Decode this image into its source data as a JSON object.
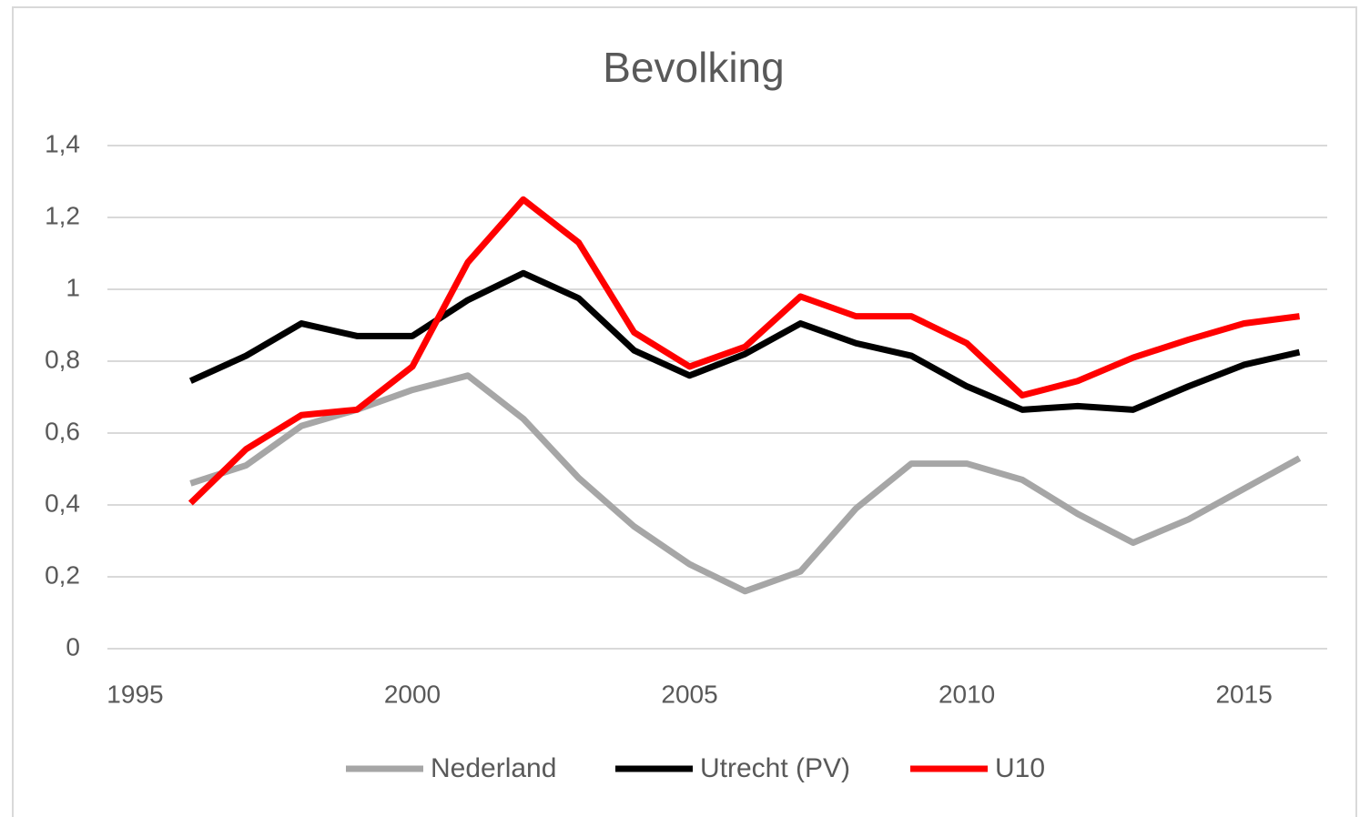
{
  "chart_data": {
    "type": "line",
    "title": "Bevolking",
    "x": [
      1996,
      1997,
      1998,
      1999,
      2000,
      2001,
      2002,
      2003,
      2004,
      2005,
      2006,
      2007,
      2008,
      2009,
      2010,
      2011,
      2012,
      2013,
      2014,
      2015,
      2016
    ],
    "series": [
      {
        "name": "Nederland",
        "color": "#a6a6a6",
        "values": [
          0.46,
          0.51,
          0.62,
          0.665,
          0.72,
          0.76,
          0.64,
          0.475,
          0.34,
          0.235,
          0.16,
          0.215,
          0.39,
          0.515,
          0.515,
          0.47,
          0.375,
          0.295,
          0.36,
          0.445,
          0.53
        ]
      },
      {
        "name": "Utrecht (PV)",
        "color": "#000000",
        "values": [
          0.745,
          0.815,
          0.905,
          0.87,
          0.87,
          0.97,
          1.045,
          0.975,
          0.83,
          0.76,
          0.82,
          0.905,
          0.85,
          0.815,
          0.73,
          0.665,
          0.675,
          0.665,
          0.73,
          0.79,
          0.825
        ]
      },
      {
        "name": "U10",
        "color": "#ff0000",
        "values": [
          0.405,
          0.555,
          0.65,
          0.665,
          0.785,
          1.075,
          1.25,
          1.13,
          0.88,
          0.785,
          0.84,
          0.98,
          0.925,
          0.925,
          0.85,
          0.705,
          0.745,
          0.81,
          0.86,
          0.905,
          0.925
        ]
      }
    ],
    "xlim": [
      1994.5,
      2016.5
    ],
    "xticks": [
      1995,
      2000,
      2005,
      2010,
      2015
    ],
    "ylim": [
      0,
      1.4
    ],
    "yticks": [
      0,
      {
        "value": 0.2,
        "label": "0,2"
      },
      {
        "value": 0.4,
        "label": "0,4"
      },
      {
        "value": 0.6,
        "label": "0,6"
      },
      {
        "value": 0.8,
        "label": "0,8"
      },
      1,
      {
        "value": 1.2,
        "label": "1,2"
      },
      {
        "value": 1.4,
        "label": "1,4"
      }
    ],
    "grid": true,
    "legend": "bottom"
  }
}
